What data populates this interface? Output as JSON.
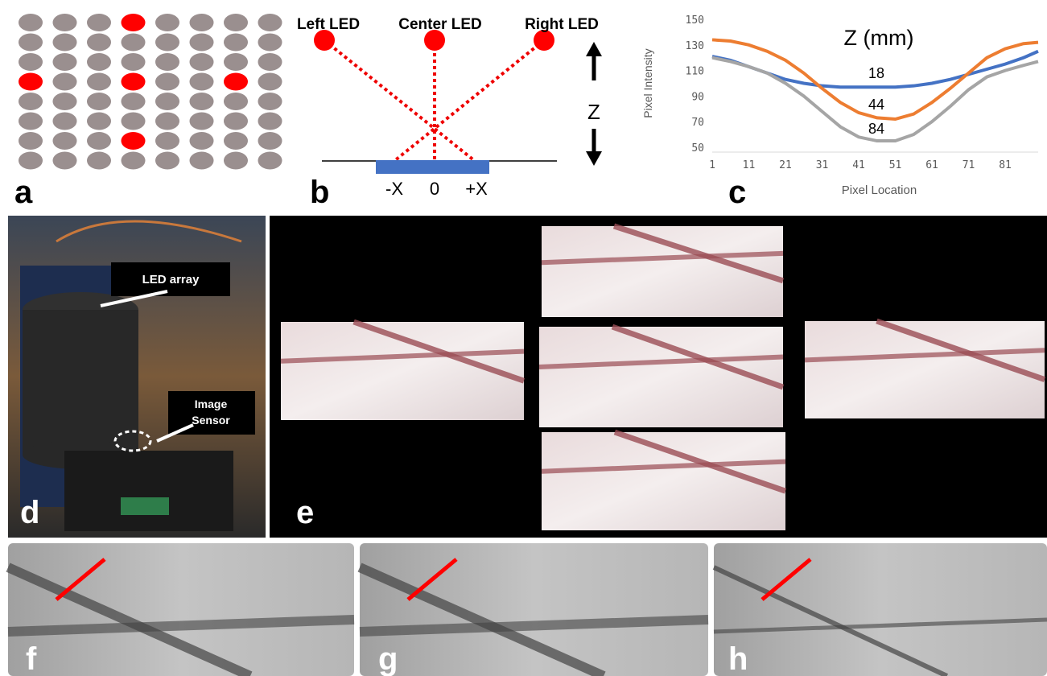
{
  "panel_labels": [
    "a",
    "b",
    "c",
    "d",
    "e",
    "f",
    "g",
    "h"
  ],
  "panel_b": {
    "left_led": "Left LED",
    "center_led": "Center LED",
    "right_led": "Right LED",
    "z_axis": "Z",
    "x_labels": [
      "-X",
      "0",
      "+X"
    ]
  },
  "panel_d": {
    "led_array": "LED array",
    "image_sensor": [
      "Image",
      "Sensor"
    ]
  },
  "chart_data": {
    "type": "line",
    "annotation": "Z (mm)",
    "x_label": "Pixel Location",
    "y_label": "Pixel Intensity",
    "x": [
      1,
      6,
      11,
      16,
      21,
      26,
      31,
      36,
      41,
      46,
      51,
      56,
      61,
      66,
      71,
      76,
      81,
      86,
      90
    ],
    "series": [
      {
        "name": "18",
        "color": "#4472c4",
        "values": [
          121,
          118,
          113,
          108,
          103,
          100,
          98,
          97,
          97,
          97,
          97,
          98,
          100,
          103,
          107,
          111,
          115,
          120,
          125
        ]
      },
      {
        "name": "44",
        "color": "#ed7d31",
        "values": [
          134,
          133,
          130,
          125,
          118,
          108,
          96,
          85,
          77,
          73,
          72,
          76,
          85,
          96,
          108,
          120,
          127,
          131,
          132
        ]
      },
      {
        "name": "84",
        "color": "#a5a5a5",
        "values": [
          120,
          117,
          113,
          108,
          100,
          90,
          78,
          66,
          58,
          55,
          55,
          60,
          70,
          82,
          95,
          105,
          110,
          114,
          117
        ]
      }
    ],
    "xlim": [
      1,
      90
    ],
    "ylim": [
      50,
      150
    ],
    "xticks": [
      1,
      11,
      21,
      31,
      41,
      51,
      61,
      71,
      81
    ],
    "yticks": [
      50,
      70,
      90,
      110,
      130,
      150
    ]
  }
}
